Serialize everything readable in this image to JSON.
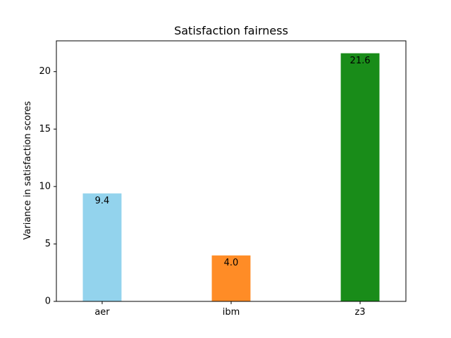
{
  "chart_data": {
    "type": "bar",
    "title": "Satisfaction fairness",
    "xlabel": "",
    "ylabel": "Variance in satisfaction scores",
    "categories": [
      "aer",
      "ibm",
      "z3"
    ],
    "values": [
      9.4,
      4.0,
      21.6
    ],
    "value_labels": [
      "9.4",
      "4.0",
      "21.6"
    ],
    "colors": [
      "#87ceeb",
      "#ff7f0e",
      "#008000"
    ],
    "bar_opacity": 0.9,
    "ylim": [
      0,
      22.68
    ],
    "yticks": [
      0,
      5,
      10,
      15,
      20
    ],
    "ytick_labels": [
      "0",
      "5",
      "10",
      "15",
      "20"
    ],
    "grid": false,
    "legend": "none"
  }
}
